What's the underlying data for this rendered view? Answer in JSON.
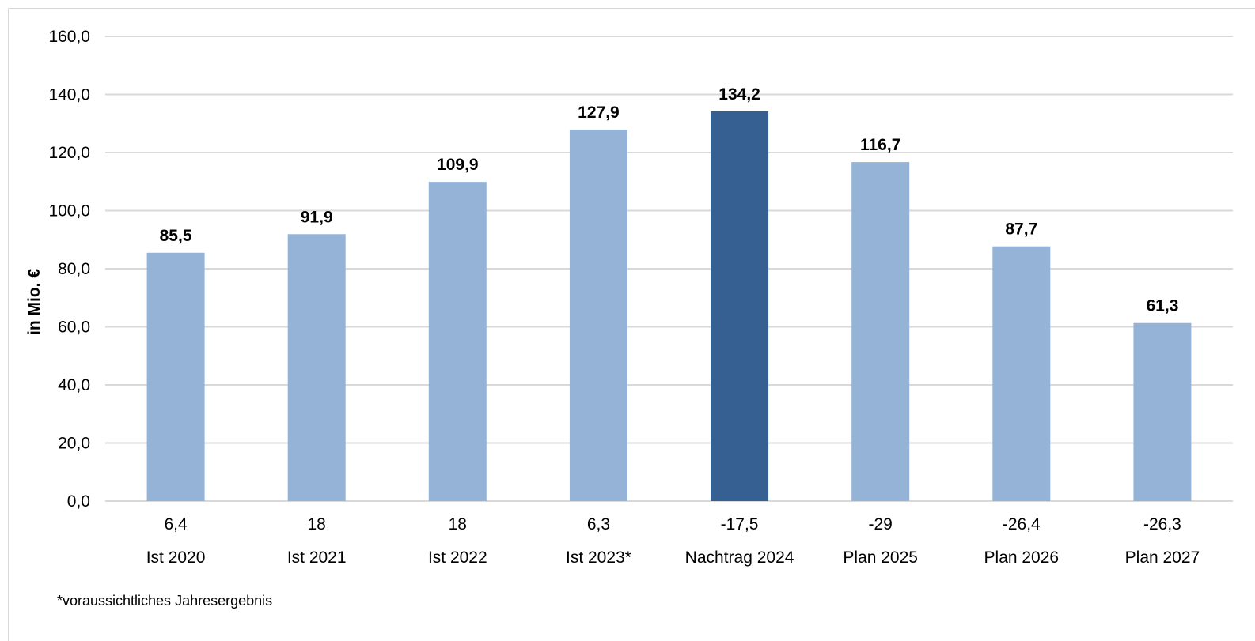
{
  "chart_data": {
    "type": "bar",
    "ylabel": "in Mio. €",
    "ylim": [
      0,
      160
    ],
    "yticks": [
      0,
      20,
      40,
      60,
      80,
      100,
      120,
      140,
      160
    ],
    "ytick_labels": [
      "0,0",
      "20,0",
      "40,0",
      "60,0",
      "80,0",
      "100,0",
      "120,0",
      "140,0",
      "160,0"
    ],
    "grid": true,
    "categories": [
      "Ist 2020",
      "Ist 2021",
      "Ist 2022",
      "Ist 2023*",
      "Nachtrag 2024",
      "Plan 2025",
      "Plan 2026",
      "Plan 2027"
    ],
    "secondary_labels": [
      "6,4",
      "18",
      "18",
      "6,3",
      "-17,5",
      "-29",
      "-26,4",
      "-26,3"
    ],
    "values": [
      85.5,
      91.9,
      109.9,
      127.9,
      134.2,
      116.7,
      87.7,
      61.3
    ],
    "value_labels": [
      "85,5",
      "91,9",
      "109,9",
      "127,9",
      "134,2",
      "116,7",
      "87,7",
      "61,3"
    ],
    "highlight_index": 4,
    "colors": {
      "bar": "#95b3d7",
      "highlight": "#366092",
      "grid": "#d9d9d9"
    },
    "footnote": "*voraussichtliches Jahresergebnis"
  }
}
